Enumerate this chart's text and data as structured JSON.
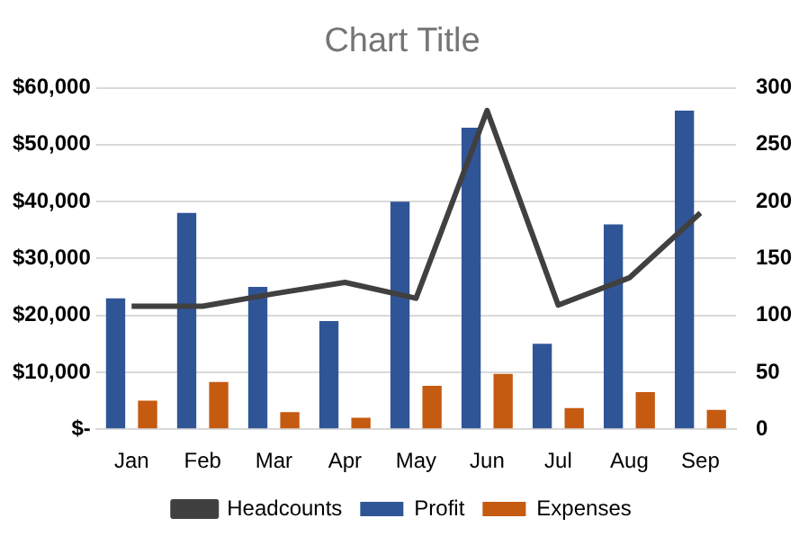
{
  "chart_data": {
    "type": "bar",
    "title": "Chart Title",
    "categories": [
      "Jan",
      "Feb",
      "Mar",
      "Apr",
      "May",
      "Jun",
      "Jul",
      "Aug",
      "Sep"
    ],
    "series": [
      {
        "name": "Profit",
        "color": "#2f5597",
        "values": [
          23000,
          38000,
          25000,
          19000,
          40000,
          53000,
          15000,
          36000,
          56000
        ]
      },
      {
        "name": "Expenses",
        "color": "#c55a11",
        "values": [
          5000,
          8300,
          3000,
          2000,
          7600,
          9700,
          3700,
          6500,
          3400
        ]
      },
      {
        "name": "Headcounts",
        "type": "line",
        "axis": "y2",
        "color": "#404040",
        "values": [
          108,
          108,
          119,
          129,
          115,
          280,
          109,
          133,
          190
        ]
      }
    ],
    "ylim": [
      0,
      60000
    ],
    "yticks": [
      {
        "value": 0,
        "label": "$-"
      },
      {
        "value": 10000,
        "label": "$10,000"
      },
      {
        "value": 20000,
        "label": "$20,000"
      },
      {
        "value": 30000,
        "label": "$30,000"
      },
      {
        "value": 40000,
        "label": "$40,000"
      },
      {
        "value": 50000,
        "label": "$50,000"
      },
      {
        "value": 60000,
        "label": "$60,000"
      }
    ],
    "y2lim": [
      0,
      300
    ],
    "y2ticks": [
      0,
      50,
      100,
      150,
      200,
      250,
      300
    ],
    "grid": "y",
    "legend": "bottom",
    "marker": "none"
  }
}
